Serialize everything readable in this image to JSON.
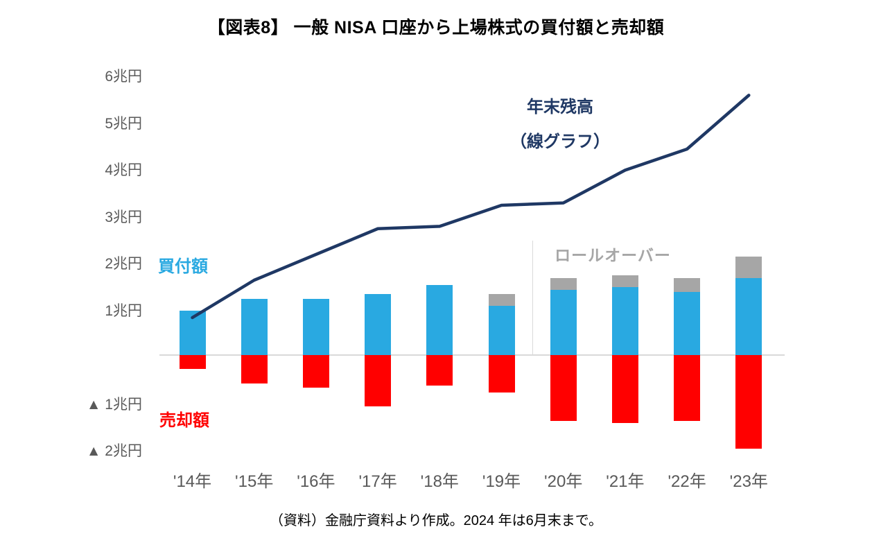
{
  "title": "【図表8】 一般 NISA 口座から上場株式の買付額と売却額",
  "footer": "（資料）金融庁資料より作成。2024 年は6月末まで。",
  "legend": {
    "balance_line1": "年末残高",
    "balance_line2": "（線グラフ）",
    "buy": "買付額",
    "rollover": "ロールオーバー",
    "sell": "売却額"
  },
  "colors": {
    "buy": "#29a9e1",
    "rollover": "#a6a6a6",
    "sell": "#ff0000",
    "balance_line": "#1f3864",
    "axis_text": "#595959",
    "baseline": "#d9d9d9",
    "title_text": "#000000"
  },
  "chart_data": {
    "type": "bar",
    "title": "【図表8】 一般 NISA 口座から上場株式の買付額と売却額",
    "unit": "兆円",
    "grid": false,
    "legend_position": "annotations",
    "categories": [
      "'14年",
      "'15年",
      "'16年",
      "'17年",
      "'18年",
      "'19年",
      "'20年",
      "'21年",
      "'22年",
      "'23年"
    ],
    "series": [
      {
        "role": "buy",
        "name": "買付額",
        "type": "bar",
        "direction": "up",
        "values": [
          0.95,
          1.2,
          1.2,
          1.3,
          1.5,
          1.05,
          1.4,
          1.45,
          1.35,
          1.65
        ]
      },
      {
        "role": "rollover",
        "name": "ロールオーバー",
        "type": "bar-stacked",
        "direction": "up",
        "values": [
          0,
          0,
          0,
          0,
          0,
          0.25,
          0.25,
          0.25,
          0.3,
          0.45
        ]
      },
      {
        "role": "sell",
        "name": "売却額",
        "type": "bar",
        "direction": "down",
        "values": [
          0.3,
          0.6,
          0.7,
          1.1,
          0.65,
          0.8,
          1.4,
          1.45,
          1.4,
          2.0
        ]
      },
      {
        "role": "balance",
        "name": "年末残高（線グラフ）",
        "type": "line",
        "values": [
          0.8,
          1.6,
          2.15,
          2.7,
          2.75,
          3.2,
          3.25,
          3.95,
          4.4,
          5.55
        ]
      }
    ],
    "y_ticks": [
      {
        "label": "6兆円",
        "value": 6
      },
      {
        "label": "5兆円",
        "value": 5
      },
      {
        "label": "4兆円",
        "value": 4
      },
      {
        "label": "3兆円",
        "value": 3
      },
      {
        "label": "2兆円",
        "value": 2
      },
      {
        "label": "1兆円",
        "value": 1
      },
      {
        "label": "▲ 1兆円",
        "value": -1
      },
      {
        "label": "▲ 2兆円",
        "value": -2
      }
    ],
    "ylim": [
      -2.6,
      6.3
    ]
  }
}
